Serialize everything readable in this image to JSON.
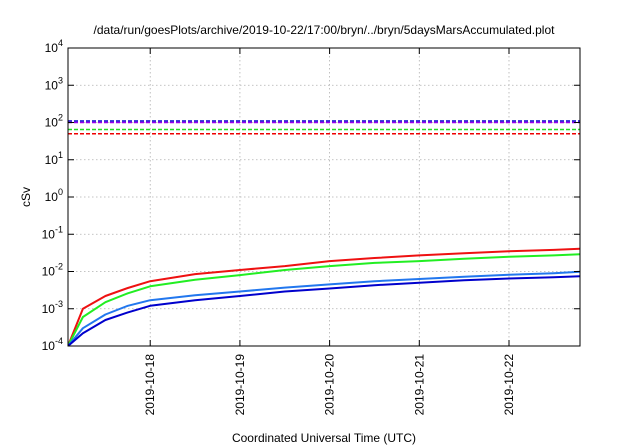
{
  "chart_data": {
    "type": "line",
    "title": "/data/run/goesPlots/archive/2019-10-22/17:00/bryn/../bryn/5daysMarsAccumulated.plot",
    "xlabel": "Coordinated Universal Time (UTC)",
    "ylabel": "cSv",
    "yscale": "log",
    "ylim": [
      0.0001,
      10000
    ],
    "xlim": [
      "2019-10-17T02:00",
      "2019-10-22T19:00"
    ],
    "grid": true,
    "legend": "none",
    "x_ticks": [
      "2019-10-18",
      "2019-10-19",
      "2019-10-20",
      "2019-10-21",
      "2019-10-22"
    ],
    "y_ticks": [
      {
        "base": "10",
        "exp": "-4"
      },
      {
        "base": "10",
        "exp": "-3"
      },
      {
        "base": "10",
        "exp": "-2"
      },
      {
        "base": "10",
        "exp": "-1"
      },
      {
        "base": "10",
        "exp": "0"
      },
      {
        "base": "10",
        "exp": "1"
      },
      {
        "base": "10",
        "exp": "2"
      },
      {
        "base": "10",
        "exp": "3"
      },
      {
        "base": "10",
        "exp": "4"
      }
    ],
    "reference_lines": [
      {
        "color": "#0000cc",
        "value": 110
      },
      {
        "color": "#9900ee",
        "value": 100
      },
      {
        "color": "#22dd22",
        "value": 65
      },
      {
        "color": "#ee0000",
        "value": 50
      }
    ],
    "series": [
      {
        "color": "#ee1111",
        "x": [
          "2019-10-17T02:00",
          "2019-10-17T06:00",
          "2019-10-17T12:00",
          "2019-10-17T18:00",
          "2019-10-18T00:00",
          "2019-10-18T12:00",
          "2019-10-19T00:00",
          "2019-10-19T12:00",
          "2019-10-20T00:00",
          "2019-10-20T12:00",
          "2019-10-21T00:00",
          "2019-10-21T12:00",
          "2019-10-22T00:00",
          "2019-10-22T12:00",
          "2019-10-22T19:00"
        ],
        "values": [
          0.0001,
          0.001,
          0.0022,
          0.0036,
          0.0055,
          0.0085,
          0.011,
          0.014,
          0.019,
          0.023,
          0.027,
          0.031,
          0.035,
          0.038,
          0.041
        ]
      },
      {
        "color": "#22ee22",
        "x": [
          "2019-10-17T02:00",
          "2019-10-17T06:00",
          "2019-10-17T12:00",
          "2019-10-17T18:00",
          "2019-10-18T00:00",
          "2019-10-18T12:00",
          "2019-10-19T00:00",
          "2019-10-19T12:00",
          "2019-10-20T00:00",
          "2019-10-20T12:00",
          "2019-10-21T00:00",
          "2019-10-21T12:00",
          "2019-10-22T00:00",
          "2019-10-22T12:00",
          "2019-10-22T19:00"
        ],
        "values": [
          0.0001,
          0.0006,
          0.0015,
          0.0026,
          0.004,
          0.006,
          0.008,
          0.011,
          0.014,
          0.017,
          0.019,
          0.022,
          0.025,
          0.027,
          0.029
        ]
      },
      {
        "color": "#2277ee",
        "x": [
          "2019-10-17T02:00",
          "2019-10-17T06:00",
          "2019-10-17T12:00",
          "2019-10-17T18:00",
          "2019-10-18T00:00",
          "2019-10-18T12:00",
          "2019-10-19T00:00",
          "2019-10-19T12:00",
          "2019-10-20T00:00",
          "2019-10-20T12:00",
          "2019-10-21T00:00",
          "2019-10-21T12:00",
          "2019-10-22T00:00",
          "2019-10-22T12:00",
          "2019-10-22T19:00"
        ],
        "values": [
          0.0001,
          0.0003,
          0.0007,
          0.0012,
          0.0017,
          0.0023,
          0.0029,
          0.0037,
          0.0045,
          0.0055,
          0.0063,
          0.0072,
          0.0082,
          0.009,
          0.0098
        ]
      },
      {
        "color": "#0000cc",
        "x": [
          "2019-10-17T02:00",
          "2019-10-17T06:00",
          "2019-10-17T12:00",
          "2019-10-17T18:00",
          "2019-10-18T00:00",
          "2019-10-18T12:00",
          "2019-10-19T00:00",
          "2019-10-19T12:00",
          "2019-10-20T00:00",
          "2019-10-20T12:00",
          "2019-10-21T00:00",
          "2019-10-21T12:00",
          "2019-10-22T00:00",
          "2019-10-22T12:00",
          "2019-10-22T19:00"
        ],
        "values": [
          0.0001,
          0.00022,
          0.0005,
          0.0008,
          0.0012,
          0.0017,
          0.0022,
          0.0029,
          0.0035,
          0.0043,
          0.005,
          0.0058,
          0.0065,
          0.007,
          0.0075
        ]
      }
    ]
  }
}
